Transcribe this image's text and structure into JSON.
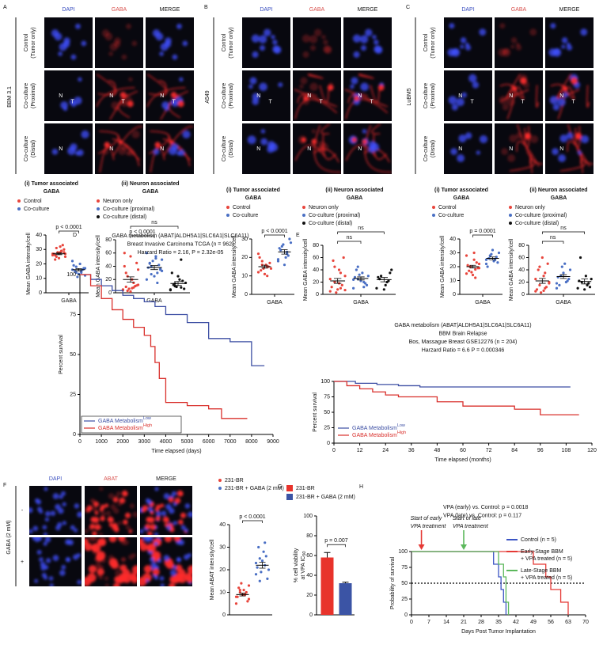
{
  "figure": {
    "A": {
      "letter": "A",
      "columns": [
        "DAPI",
        "GABA",
        "MERGE"
      ],
      "rows": [
        [
          "Control",
          "(Tumor only)"
        ],
        [
          "Co-culture",
          "(Proximal)"
        ],
        [
          "Co-culture",
          "(Distal)"
        ]
      ],
      "cell_line": "BBM 3.1",
      "row_marks": [
        [],
        [
          "N",
          "T"
        ],
        [
          "N"
        ]
      ]
    },
    "B": {
      "letter": "B",
      "columns": [
        "DAPI",
        "GABA",
        "MERGE"
      ],
      "rows": [
        [
          "Control",
          "(Tumor only)"
        ],
        [
          "Co-culture",
          "(Proximal)"
        ],
        [
          "Co-culture",
          "(Distal)"
        ]
      ],
      "cell_line": "A549",
      "row_marks": [
        [],
        [
          "N",
          "T"
        ],
        [
          "N"
        ]
      ]
    },
    "C": {
      "letter": "C",
      "columns": [
        "DAPI",
        "GABA",
        "MERGE"
      ],
      "rows": [
        [
          "Control",
          "(Tumor only)"
        ],
        [
          "Co-culture",
          "(Proximal)"
        ],
        [
          "Co-culture",
          "(Distal)"
        ]
      ],
      "cell_line": "LuBM5",
      "row_marks": [
        [],
        [
          "N",
          "T"
        ],
        [
          "N"
        ]
      ]
    },
    "D": {
      "letter": "D"
    },
    "E": {
      "letter": "E"
    },
    "F": {
      "letter": "F",
      "columns": [
        "DAPI",
        "ABAT",
        "MERGE"
      ],
      "rows": [
        "-",
        "+"
      ],
      "treatment": "GABA (2 mM)"
    },
    "G": {
      "letter": "G"
    },
    "H": {
      "letter": "H"
    }
  },
  "chart_data": [
    {
      "type": "dot",
      "title": [
        "(i) Tumor associated",
        "GABA"
      ],
      "xlabel": "GABA",
      "ylabel": "Mean GABA intensity/cell",
      "ylim": [
        0,
        40
      ],
      "yticks": [
        0,
        10,
        20,
        30,
        40
      ],
      "annotations": [
        "p < 0.0001"
      ],
      "series": [
        {
          "name": "Control",
          "color": "#e8453c",
          "values": [
            27,
            29,
            31,
            25,
            28,
            26,
            30,
            24,
            27,
            33,
            28,
            26,
            29,
            25,
            27,
            32,
            23,
            28
          ],
          "mean": 27,
          "sem": 0.6
        },
        {
          "name": "Co-culture",
          "color": "#4a6fc4",
          "values": [
            16,
            14,
            18,
            12,
            20,
            15,
            17,
            13,
            19,
            16,
            11,
            22,
            15,
            14,
            17
          ],
          "mean": 16,
          "sem": 0.8
        }
      ]
    },
    {
      "type": "dot",
      "title": [
        "(ii) Neuron associated",
        "GABA"
      ],
      "xlabel": "GABA",
      "ylabel": "Mean GABA intensity/cell",
      "ylim": [
        0,
        80
      ],
      "yticks": [
        0,
        20,
        40,
        60,
        80
      ],
      "annotations": [
        "p < 0.0001",
        "ns"
      ],
      "series": [
        {
          "name": "Neuron only",
          "color": "#e8453c",
          "values": [
            5,
            8,
            3,
            12,
            20,
            30,
            45,
            55,
            60,
            10,
            6,
            4,
            15,
            25,
            35,
            7,
            9,
            11,
            2,
            40
          ],
          "mean": 20,
          "sem": 4
        },
        {
          "name": "Co-culture (proximal)",
          "color": "#4a6fc4",
          "values": [
            20,
            30,
            40,
            50,
            55,
            45,
            35,
            25,
            38,
            42,
            48,
            60,
            15,
            28,
            33,
            52,
            44,
            36
          ],
          "mean": 38,
          "sem": 3
        },
        {
          "name": "Co-culture (distal)",
          "color": "#111111",
          "values": [
            5,
            8,
            10,
            15,
            20,
            12,
            6,
            25,
            30,
            18,
            9,
            4,
            50,
            14
          ],
          "mean": 14,
          "sem": 3
        }
      ]
    },
    {
      "type": "dot",
      "title": [
        "(i) Tumor associated",
        "GABA"
      ],
      "xlabel": "GABA",
      "ylabel": "Mean GABA intensity/cell",
      "ylim": [
        0,
        30
      ],
      "yticks": [
        0,
        10,
        20,
        30
      ],
      "annotations": [
        "p < 0.0001"
      ],
      "series": [
        {
          "name": "Control",
          "color": "#e8453c",
          "values": [
            12,
            15,
            18,
            14,
            16,
            13,
            17,
            11,
            20,
            15,
            14,
            22,
            10,
            16
          ],
          "mean": 15,
          "sem": 0.8
        },
        {
          "name": "Co-culture",
          "color": "#4a6fc4",
          "values": [
            18,
            22,
            26,
            28,
            20,
            24,
            30,
            16,
            25,
            21,
            27,
            19,
            23
          ],
          "mean": 23,
          "sem": 1.2
        }
      ]
    },
    {
      "type": "dot",
      "title": [
        "(ii) Neuron associated",
        "GABA"
      ],
      "xlabel": "GABA",
      "ylabel": "Mean GABA intensity/cell",
      "ylim": [
        0,
        80
      ],
      "yticks": [
        0,
        20,
        40,
        60,
        80
      ],
      "annotations": [
        "ns",
        "ns"
      ],
      "series": [
        {
          "name": "Neuron only",
          "color": "#e8453c",
          "values": [
            5,
            10,
            20,
            30,
            40,
            55,
            60,
            8,
            12,
            15,
            3,
            25,
            35,
            45,
            7,
            18
          ],
          "mean": 22,
          "sem": 4
        },
        {
          "name": "Co-culture (proximal)",
          "color": "#4a6fc4",
          "values": [
            10,
            20,
            25,
            30,
            35,
            40,
            15,
            22,
            28,
            18,
            32,
            24,
            12,
            45
          ],
          "mean": 26,
          "sem": 2.5
        },
        {
          "name": "Co-culture (distal)",
          "color": "#111111",
          "values": [
            10,
            20,
            30,
            40,
            15,
            25,
            35,
            8,
            28,
            22
          ],
          "mean": 24,
          "sem": 3.5
        }
      ]
    },
    {
      "type": "dot",
      "title": [
        "(i) Tumor associated",
        "GABA"
      ],
      "xlabel": "GABA",
      "ylabel": "Mean GABA intensity/cell",
      "ylim": [
        0,
        40
      ],
      "yticks": [
        0,
        10,
        20,
        30,
        40
      ],
      "annotations": [
        "p = 0.0001"
      ],
      "series": [
        {
          "name": "Control",
          "color": "#e8453c",
          "values": [
            15,
            18,
            20,
            22,
            25,
            17,
            19,
            14,
            21,
            23,
            16,
            28,
            12,
            20,
            19,
            30
          ],
          "mean": 20,
          "sem": 1
        },
        {
          "name": "Co-culture",
          "color": "#4a6fc4",
          "values": [
            22,
            25,
            28,
            30,
            24,
            26,
            23,
            32,
            20,
            27,
            29,
            25
          ],
          "mean": 26,
          "sem": 1
        }
      ]
    },
    {
      "type": "dot",
      "title": [
        "(ii) Neuron associated",
        "GABA"
      ],
      "xlabel": "GABA",
      "ylabel": "Mean GABA intensity/cell",
      "ylim": [
        0,
        80
      ],
      "yticks": [
        0,
        20,
        40,
        60,
        80
      ],
      "annotations": [
        "ns",
        "ns"
      ],
      "series": [
        {
          "name": "Neuron only",
          "color": "#e8453c",
          "values": [
            5,
            10,
            15,
            20,
            30,
            40,
            50,
            60,
            8,
            12,
            3,
            25,
            35,
            45,
            18,
            6
          ],
          "mean": 22,
          "sem": 4
        },
        {
          "name": "Co-culture (proximal)",
          "color": "#4a6fc4",
          "values": [
            10,
            20,
            30,
            40,
            50,
            15,
            25,
            35,
            28,
            22,
            45,
            18
          ],
          "mean": 29,
          "sem": 3
        },
        {
          "name": "Co-culture (distal)",
          "color": "#111111",
          "values": [
            10,
            15,
            20,
            25,
            30,
            60,
            12,
            8,
            22,
            18
          ],
          "mean": 21,
          "sem": 4
        }
      ]
    },
    {
      "type": "line",
      "step": true,
      "title": [
        "GABA metabolism (ABAT|ALDH5A1|SLC6A1|SLC6A11)",
        "Breast Invasive Carcinoma TCGA (n = 962)",
        "Harzard Ratio = 2.16, P = 2.32e-05"
      ],
      "xlabel": "Time elapsed (days)",
      "ylabel": "Percent survival",
      "xlim": [
        0,
        9000
      ],
      "xticks": [
        0,
        1000,
        2000,
        3000,
        4000,
        5000,
        6000,
        7000,
        8000,
        9000
      ],
      "ylim": [
        0,
        100
      ],
      "yticks": [
        0,
        25,
        50,
        75,
        100
      ],
      "legend": "lower left",
      "legend_frame": true,
      "series": [
        {
          "name": "GABA Metabolism",
          "name_sup": "Low",
          "color": "#3c4ea3",
          "x": [
            0,
            500,
            1000,
            1500,
            2000,
            2500,
            3000,
            3500,
            4000,
            5000,
            6000,
            7000,
            8000,
            8600
          ],
          "values": [
            100,
            97,
            93,
            90,
            87,
            85,
            83,
            80,
            75,
            70,
            60,
            58,
            43,
            43
          ]
        },
        {
          "name": "GABA Metabolism",
          "name_sup": "High",
          "color": "#d9302c",
          "x": [
            0,
            500,
            1000,
            1500,
            2000,
            2500,
            3000,
            3300,
            3500,
            3700,
            4000,
            5000,
            6000,
            6600,
            7800
          ],
          "values": [
            100,
            93,
            85,
            78,
            72,
            67,
            62,
            55,
            45,
            35,
            20,
            18,
            16,
            10,
            10
          ]
        }
      ]
    },
    {
      "type": "line",
      "step": true,
      "title": [
        "GABA metabolism (ABAT|ALDH5A1|SLC6A1|SLC6A11)",
        "BBM Brain Relapse",
        "Bos, Massague Breast GSE12276 (n = 204)",
        "Harzard Ratio = 6.6 P = 0.000346"
      ],
      "xlabel": "Time elapsed (months)",
      "ylabel": "Percent survival",
      "xlim": [
        0,
        120
      ],
      "xticks": [
        0,
        12,
        24,
        36,
        48,
        60,
        72,
        84,
        96,
        108,
        120
      ],
      "ylim": [
        0,
        100
      ],
      "yticks": [
        0,
        25,
        50,
        75,
        100
      ],
      "legend": "lower left",
      "series": [
        {
          "name": "GABA Metabolism",
          "name_sup": "Low",
          "color": "#3c4ea3",
          "x": [
            0,
            10,
            20,
            30,
            40,
            110
          ],
          "values": [
            100,
            97,
            95,
            93,
            91,
            91
          ]
        },
        {
          "name": "GABA Metabolism",
          "name_sup": "High",
          "color": "#d9302c",
          "x": [
            0,
            6,
            12,
            18,
            24,
            30,
            48,
            60,
            84,
            96,
            114
          ],
          "values": [
            100,
            93,
            88,
            83,
            78,
            75,
            67,
            60,
            55,
            46,
            46
          ]
        }
      ]
    },
    {
      "type": "dot",
      "ylabel": "Mean ABAT intensity/cell",
      "ylim": [
        0,
        40
      ],
      "yticks": [
        0,
        10,
        20,
        30,
        40
      ],
      "annotations": [
        "p < 0.0001"
      ],
      "series": [
        {
          "name": "231-BR",
          "color": "#e8453c",
          "values": [
            8,
            9,
            10,
            7,
            11,
            12,
            6,
            9,
            8,
            10,
            14,
            5,
            9,
            11,
            13
          ],
          "mean": 9,
          "sem": 0.6
        },
        {
          "name": "231-BR + GABA (2 mM)",
          "color": "#4a6fc4",
          "values": [
            18,
            22,
            25,
            20,
            28,
            30,
            16,
            24,
            21,
            26,
            19,
            23,
            32,
            15
          ],
          "mean": 22,
          "sem": 1.3
        }
      ]
    },
    {
      "type": "bar",
      "ylabel": [
        "% cell viability",
        "at VPA IC"
      ],
      "ylabel_sub": "50",
      "ylim": [
        0,
        100
      ],
      "yticks": [
        0,
        20,
        40,
        60,
        80,
        100
      ],
      "annotations": [
        "p = 0.007"
      ],
      "series": [
        {
          "name": "231-BR",
          "color": "#e8332b",
          "value": 58,
          "error": 5
        },
        {
          "name": "231-BR + GABA (2 mM)",
          "color": "#3b54a5",
          "value": 32,
          "error": 1
        }
      ]
    },
    {
      "type": "line",
      "step": true,
      "title": [
        "VPA (early) vs. Control: p = 0.0018",
        "VPA (late) vs. Control: p = 0.117"
      ],
      "xlabel": "Days Post Tumor Implantation",
      "ylabel": "Probability of survival",
      "xlim": [
        0,
        70
      ],
      "xticks": [
        0,
        7,
        14,
        21,
        28,
        35,
        42,
        49,
        56,
        63,
        70
      ],
      "ylim": [
        0,
        100
      ],
      "yticks": [
        0,
        25,
        50,
        75,
        100
      ],
      "reference_line": 50,
      "legend": "upper right",
      "annotations": [
        {
          "x": 4,
          "text": [
            "Start of early",
            "VPA treatment"
          ],
          "color": "#e53935"
        },
        {
          "x": 21,
          "text": [
            "Start of late",
            "VPA treatment"
          ],
          "color": "#5cb85c"
        }
      ],
      "series": [
        {
          "name": [
            "Control (n = 5)"
          ],
          "color": "#3b54c4",
          "x": [
            0,
            33,
            35,
            36,
            37,
            38
          ],
          "values": [
            100,
            80,
            60,
            40,
            20,
            0
          ]
        },
        {
          "name": [
            "Early-Stage BBM",
            "+ VPA treated (n = 5)"
          ],
          "color": "#e53935",
          "x": [
            0,
            49,
            54,
            56,
            60,
            63
          ],
          "values": [
            100,
            80,
            60,
            40,
            20,
            0
          ]
        },
        {
          "name": [
            "Late-Stage BBM",
            "+ VPA treated (n = 5)"
          ],
          "color": "#5cb85c",
          "x": [
            0,
            35,
            37,
            38,
            39
          ],
          "values": [
            100,
            80,
            60,
            20,
            0
          ]
        }
      ]
    }
  ]
}
